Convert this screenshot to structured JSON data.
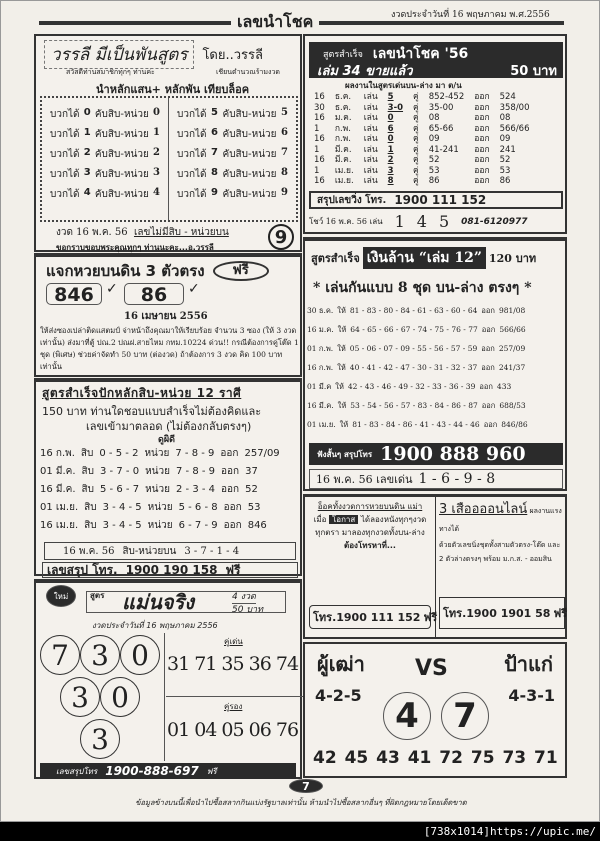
{
  "header": {
    "title": "เลขนำโชค",
    "date": "งวดประจำวันที่ 16 พฤษภาคม พ.ศ.2556"
  },
  "varasri": {
    "title": "วรรลี มีเป็นพันสูตร",
    "by": "โดย..วรรลี",
    "greeting": "สวัสดีท่านสมาชิกทุกๆ ท่านค่ะ",
    "greeting2": "เชียนตำนวณร้ามงวด",
    "subtitle": "นำหลักแสน+ หลักพัน เทียบล็อค",
    "rows": [
      {
        "a": "บวกได้",
        "n": "0",
        "b": "คับสิบ-หน่วย",
        "r": "0"
      },
      {
        "a": "บวกได้",
        "n": "1",
        "b": "คับสิบ-หน่วย",
        "r": "1"
      },
      {
        "a": "บวกได้",
        "n": "2",
        "b": "คับสิบ-หน่วย",
        "r": "2"
      },
      {
        "a": "บวกได้",
        "n": "3",
        "b": "คับสิบ-หน่วย",
        "r": "3"
      },
      {
        "a": "บวกได้",
        "n": "4",
        "b": "คับสิบ-หน่วย",
        "r": "4"
      },
      {
        "a": "บวกได้",
        "n": "5",
        "b": "คับสิบ-หน่วย",
        "r": "5"
      },
      {
        "a": "บวกได้",
        "n": "6",
        "b": "คับสิบ-หน่วย",
        "r": "6"
      },
      {
        "a": "บวกได้",
        "n": "7",
        "b": "คับสิบ-หน่วย",
        "r": "7"
      },
      {
        "a": "บวกได้",
        "n": "8",
        "b": "คับสิบ-หน่วย",
        "r": "8"
      },
      {
        "a": "บวกได้",
        "n": "9",
        "b": "คับสิบ-หน่วย",
        "r": "9"
      }
    ],
    "draw": "งวด 16 พ.ค. 56",
    "draw_label": "เลขไม่มีสิบ - หน่วยบน",
    "thanks": "ขอกราบขอบพระคุณทุกๆ ท่านนะคะ...อ.วรรลี",
    "number": "9"
  },
  "free": {
    "title": "แจกหวยบนดิน 3 ตัวตรง",
    "badge": "ฟรี",
    "num1": "846",
    "num2": "86",
    "check": "✓",
    "date": "16 เมษายน 2556",
    "body": "ให้ส่งซองเปล่าติดแสตมป์ จ่าหน้าถึงคุณมาให้เรียบร้อย จำนวน 3 ซอง (ให้ 3 งวดเท่านั้น) ส่งมาที่ตู้ ปณ.2 ปณฝ.สายไหม กทม.10224 ด่วน!! กรณีต้องการคู่โต๊ด 1 ชุด (พิเศษ) ช่วยค่าจัดทำ 50 บาท (ต่องวด) ถ้าต้องการ 3 งวด คิด 100 บาทเท่านั้น"
  },
  "tens": {
    "title": "สูตรสำเร็จปักหลักสิบ-หน่วย 12 ราศี",
    "line1": "150 บาท ท่านใดชอบแบบสำเร็จไม่ต้องคิดและ",
    "line2": "เลขเข้ามาตลอด (ไม่ต้องกลับตรงๆ)",
    "subtitle": "ดูผิดี",
    "rows": [
      {
        "date": "16 ก.พ.",
        "l1": "สิบ",
        "s": [
          "0",
          "5",
          "2"
        ],
        "l2": "หน่วย",
        "u": [
          "7",
          "8",
          "9"
        ],
        "out": "ออก",
        "res": "257/09"
      },
      {
        "date": "01 มี.ค.",
        "l1": "สิบ",
        "s": [
          "3",
          "7",
          "0"
        ],
        "l2": "หน่วย",
        "u": [
          "7",
          "8",
          "9"
        ],
        "out": "ออก",
        "res": "37"
      },
      {
        "date": "16 มี.ค.",
        "l1": "สิบ",
        "s": [
          "5",
          "6",
          "7"
        ],
        "l2": "หน่วย",
        "u": [
          "2",
          "3",
          "4"
        ],
        "out": "ออก",
        "res": "52"
      },
      {
        "date": "01 เม.ย.",
        "l1": "สิบ",
        "s": [
          "3",
          "4",
          "5"
        ],
        "l2": "หน่วย",
        "u": [
          "5",
          "6",
          "8"
        ],
        "out": "ออก",
        "res": "53"
      },
      {
        "date": "16 เม.ย.",
        "l1": "สิบ",
        "s": [
          "3",
          "4",
          "5"
        ],
        "l2": "หน่วย",
        "u": [
          "6",
          "7",
          "9"
        ],
        "out": "ออก",
        "res": "846"
      }
    ],
    "next_date": "16 พ.ค. 56",
    "next_label": "สิบ-หน่วยบน",
    "next": [
      "3",
      "7",
      "1",
      "4"
    ],
    "phone_label": "เลขสรุป โทร.",
    "phone": "1900 190 158",
    "phone_free": "ฟรี"
  },
  "sure": {
    "new_badge": "ใหม่",
    "prefix": "สูตร",
    "title": "แม่นจริง",
    "draws": "4 งวด",
    "price": "50 บาท",
    "date": "งวดประจำวันที่ 16 พฤษภาคม 2556",
    "balls": [
      "7",
      "3",
      "0",
      "3",
      "0",
      "3"
    ],
    "pair_label": "คู่เด่น",
    "pairs": "31 71 35 36 74",
    "sub_label": "คู่รอง",
    "subs": "01 04 05 06 76",
    "phone_label": "เลขสรุปโทร",
    "phone": "1900-888-697",
    "phone_free": "ฟรี"
  },
  "lucky": {
    "title1": "สูตรสำเร็จ",
    "title2": "เลขนำโชค '56",
    "issue": "เล่ม 34 ขายแล้ว",
    "price": "50 บาท",
    "subtitle": "ผลงานในสูตรเด่นบน-ล่าง มา ต/น",
    "rows": [
      {
        "d": "16",
        "m": "ธ.ค.",
        "p": "เล่น",
        "c": "5",
        "k": "คู่",
        "pair": "852-452",
        "o": "ออก",
        "r": "524"
      },
      {
        "d": "30",
        "m": "ธ.ค.",
        "p": "เล่น",
        "c": "3-0",
        "k": "คู่",
        "pair": "35-00",
        "o": "ออก",
        "r": "358/00"
      },
      {
        "d": "16",
        "m": "ม.ค.",
        "p": "เล่น",
        "c": "0",
        "k": "คู่",
        "pair": "08",
        "o": "ออก",
        "r": "08"
      },
      {
        "d": "1",
        "m": "ก.พ.",
        "p": "เล่น",
        "c": "6",
        "k": "คู่",
        "pair": "65-66",
        "o": "ออก",
        "r": "566/66"
      },
      {
        "d": "16",
        "m": "ก.พ.",
        "p": "เล่น",
        "c": "0",
        "k": "คู่",
        "pair": "09",
        "o": "ออก",
        "r": "09"
      },
      {
        "d": "1",
        "m": "มี.ค.",
        "p": "เล่น",
        "c": "1",
        "k": "คู่",
        "pair": "41-241",
        "o": "ออก",
        "r": "241"
      },
      {
        "d": "16",
        "m": "มี.ค.",
        "p": "เล่น",
        "c": "2",
        "k": "คู่",
        "pair": "52",
        "o": "ออก",
        "r": "52"
      },
      {
        "d": "1",
        "m": "เม.ย.",
        "p": "เล่น",
        "c": "3",
        "k": "คู่",
        "pair": "53",
        "o": "ออก",
        "r": "53"
      },
      {
        "d": "16",
        "m": "เม.ย.",
        "p": "เล่น",
        "c": "8",
        "k": "คู่",
        "pair": "86",
        "o": "ออก",
        "r": "86"
      }
    ],
    "phone_label": "สรุปเลขวิ่ง โทร.",
    "phone": "1900 111 152",
    "next_label": "โชว์ 16 พ.ค. 56 เล่น",
    "next": [
      "1",
      "4",
      "5"
    ],
    "mobile": "081-6120977"
  },
  "million": {
    "prefix": "สูตรสำเร็จ",
    "title": "เงินล้าน “เล่ม 12”",
    "price": "120 บาท",
    "subtitle": "* เล่นกันแบบ 8 ชุด บน-ล่าง ตรงๆ *",
    "rows": [
      {
        "date": "30 ธ.ค.",
        "give": "ให้",
        "nums": "81 - 83 - 80 - 84 - 61 - 63 - 60 - 64",
        "out": "ออก",
        "res": "981/08"
      },
      {
        "date": "16 ม.ค.",
        "give": "ให้",
        "nums": "64 - 65 - 66 - 67 - 74 - 75 - 76 - 77",
        "out": "ออก",
        "res": "566/66"
      },
      {
        "date": "01 ก.พ.",
        "give": "ให้",
        "nums": "05 - 06 - 07 - 09 - 55 - 56 - 57 - 59",
        "out": "ออก",
        "res": "257/09"
      },
      {
        "date": "16 ก.พ.",
        "give": "ให้",
        "nums": "40 - 41 - 42 - 47 - 30 - 31 - 32 - 37",
        "out": "ออก",
        "res": "241/37"
      },
      {
        "date": "01 มี.ค",
        "give": "ให้",
        "nums": "42 - 43 - 46 - 49 - 32 - 33 - 36 - 39",
        "out": "ออก",
        "res": "433"
      },
      {
        "date": "16 มี.ค.",
        "give": "ให้",
        "nums": "53 - 54 - 56 - 57 - 83 - 84 - 86 - 87",
        "out": "ออก",
        "res": "688/53"
      },
      {
        "date": "01 เม.ย.",
        "give": "ให้",
        "nums": "81 - 83 - 84 - 86 - 41 - 43 - 44 - 46",
        "out": "ออก",
        "res": "846/86"
      }
    ],
    "phone_label": "ฟังสั้นๆ สรุปโทร",
    "phone": "1900 888 960",
    "next_label": "16 พ.ค. 56 เลขเด่น",
    "next": [
      "1",
      "6",
      "9",
      "8"
    ]
  },
  "promo_left": {
    "title": "อ็อคทั้งงวดการหวยบนดิน แม่า",
    "l1": "เมื่อ",
    "tag": "โอกาส",
    "l2": "ได้ลองหนังทุกๆงวด",
    "l3": "ทุกตรา มาลองทุกงวดทั้งบน-ล่าง",
    "l4": "ต้องโทรหาที่...",
    "phone": "โทร.1900 111 152",
    "free": "ฟรี"
  },
  "promo_right": {
    "title": "3 เสืออออนไลน์",
    "t2": "ผลงานแรงทางได้",
    "l1": "ด้วยตัวเลขนิ่งชุดทั้งสามตัวตรง-โต๊ด และ",
    "l2": "2 ตัวล่างตรงๆ พร้อม ม.ก.ส. - ออมสิน",
    "phone": "โทร.1900 1901 58",
    "free": "ฟรี"
  },
  "versus": {
    "left": "ผู้เฒ่า",
    "vs": "VS",
    "right": "ป้าแก่",
    "left_nums": "4-2-5",
    "right_nums": "4-3-1",
    "big1": "4",
    "big2": "7",
    "row": "42 45 43 41 72 75 73 71"
  },
  "footer": {
    "page": "7",
    "disclaimer": "ข้อมูลข้างบนนี้เพื่อนำไปซื้อสลากกินแบ่งรัฐบาลเท่านั้น ห้ามนำไปซื้อสลากอื่นๆ ที่ผิดกฎหมายโดยเด็ดขาด",
    "watermark": "[738x1014]https://upic.me/"
  }
}
